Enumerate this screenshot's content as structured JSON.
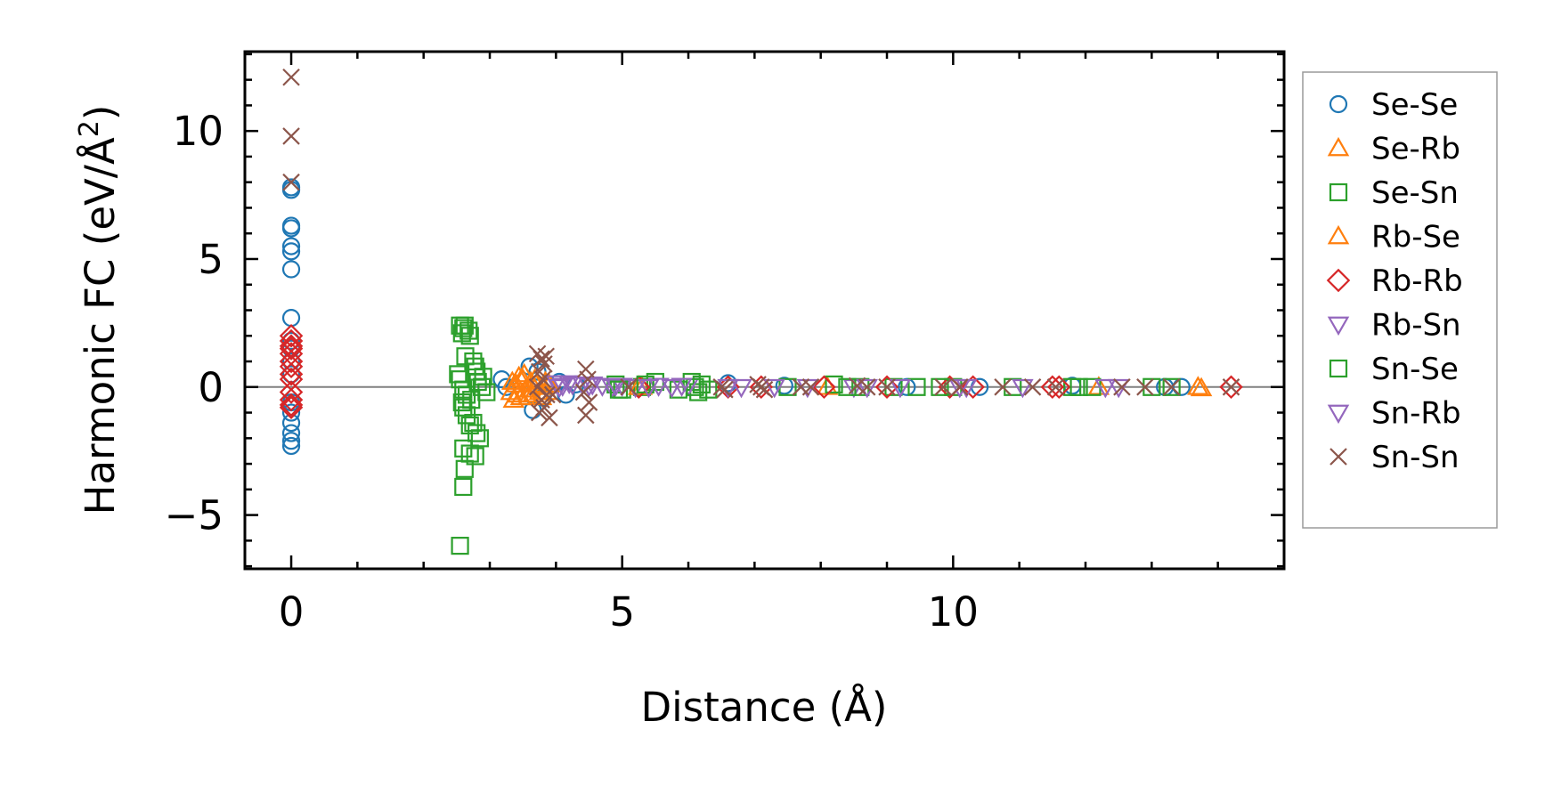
{
  "chart_data": {
    "type": "scatter",
    "xlabel": "Distance (Å)",
    "ylabel_main": "Harmonic FC (eV/Å",
    "ylabel_sup": "2",
    "ylabel_close": ")",
    "xlim": [
      -0.7,
      15.0
    ],
    "ylim": [
      -7.1,
      13.1
    ],
    "xticks": [
      0,
      5,
      10
    ],
    "xtick_labels": [
      "0",
      "5",
      "10"
    ],
    "yticks": [
      -5,
      0,
      5,
      10
    ],
    "ytick_labels": [
      "−5",
      "0",
      "5",
      "10"
    ],
    "grid": false,
    "zero_line": true,
    "legend_position": "right",
    "series": [
      {
        "name": "Se-Se",
        "marker": "circle",
        "color": "#1f77b4",
        "points": [
          [
            0,
            7.8
          ],
          [
            0,
            7.7
          ],
          [
            0,
            6.3
          ],
          [
            0,
            6.2
          ],
          [
            0,
            5.5
          ],
          [
            0,
            5.3
          ],
          [
            0,
            4.6
          ],
          [
            0,
            2.7
          ],
          [
            0,
            1.8
          ],
          [
            0,
            1.5
          ],
          [
            0,
            1.0
          ],
          [
            0,
            0.5
          ],
          [
            0,
            -0.6
          ],
          [
            0,
            -1.0
          ],
          [
            0,
            -1.4
          ],
          [
            0,
            -1.8
          ],
          [
            0,
            -2.1
          ],
          [
            0,
            -2.3
          ],
          [
            3.18,
            0.3
          ],
          [
            3.25,
            0.0
          ],
          [
            3.6,
            0.8
          ],
          [
            3.65,
            -0.9
          ],
          [
            3.72,
            0.6
          ],
          [
            3.8,
            -0.4
          ],
          [
            4.05,
            0.2
          ],
          [
            4.15,
            -0.3
          ],
          [
            4.3,
            0.1
          ],
          [
            6.6,
            0.15
          ],
          [
            7.45,
            0.05
          ],
          [
            9.3,
            0.0
          ],
          [
            10.4,
            0.0
          ],
          [
            11.8,
            0.05
          ],
          [
            13.2,
            0.0
          ],
          [
            13.45,
            0.0
          ]
        ]
      },
      {
        "name": "Se-Rb",
        "marker": "triangle-up",
        "color": "#ff7f0e",
        "points": [
          [
            3.32,
            -0.2
          ],
          [
            3.36,
            -0.5
          ],
          [
            3.4,
            0.1
          ],
          [
            3.44,
            0.4
          ],
          [
            3.47,
            -0.4
          ],
          [
            3.5,
            0.3
          ],
          [
            3.54,
            -0.1
          ],
          [
            3.58,
            -0.4
          ],
          [
            3.62,
            0.2
          ],
          [
            3.65,
            -0.3
          ],
          [
            3.7,
            0.1
          ],
          [
            3.75,
            -0.2
          ],
          [
            3.8,
            0.0
          ],
          [
            3.86,
            -0.2
          ],
          [
            3.9,
            0.1
          ],
          [
            5.3,
            0.0
          ],
          [
            8.1,
            0.0
          ],
          [
            12.2,
            0.0
          ],
          [
            13.75,
            -0.05
          ]
        ]
      },
      {
        "name": "Se-Sn",
        "marker": "square",
        "color": "#2ca02c",
        "points": [
          [
            2.55,
            2.4
          ],
          [
            2.6,
            2.3
          ],
          [
            2.58,
            2.1
          ],
          [
            2.62,
            2.4
          ],
          [
            2.68,
            2.2
          ],
          [
            2.7,
            2.0
          ],
          [
            2.75,
            1.0
          ],
          [
            2.78,
            0.8
          ],
          [
            2.8,
            0.6
          ],
          [
            2.55,
            0.3
          ],
          [
            2.6,
            -0.1
          ],
          [
            2.65,
            -0.3
          ],
          [
            2.72,
            -0.5
          ],
          [
            2.6,
            -0.8
          ],
          [
            2.65,
            -1.1
          ],
          [
            2.75,
            -1.4
          ],
          [
            2.8,
            -1.8
          ],
          [
            2.85,
            -2.0
          ],
          [
            2.7,
            -2.6
          ],
          [
            2.6,
            -2.4
          ],
          [
            2.78,
            -2.7
          ],
          [
            2.62,
            -3.2
          ],
          [
            2.6,
            -3.9
          ],
          [
            2.55,
            -6.2
          ],
          [
            2.9,
            0.4
          ],
          [
            2.95,
            -0.2
          ],
          [
            2.88,
            0.0
          ],
          [
            4.9,
            0.1
          ],
          [
            5.0,
            -0.1
          ],
          [
            5.3,
            0.0
          ],
          [
            5.5,
            0.2
          ],
          [
            5.85,
            -0.1
          ],
          [
            6.05,
            0.2
          ],
          [
            6.15,
            -0.2
          ],
          [
            6.2,
            0.1
          ],
          [
            7.5,
            0.0
          ],
          [
            8.2,
            0.1
          ],
          [
            8.6,
            0.0
          ],
          [
            9.1,
            0.0
          ],
          [
            9.45,
            0.0
          ],
          [
            10.0,
            0.0
          ],
          [
            10.9,
            0.0
          ],
          [
            11.8,
            0.0
          ],
          [
            12.1,
            0.0
          ],
          [
            13.0,
            0.0
          ],
          [
            13.3,
            0.0
          ]
        ]
      },
      {
        "name": "Rb-Se",
        "marker": "triangle-up",
        "color": "#ff7f0e",
        "points": [
          [
            3.34,
            0.2
          ],
          [
            3.42,
            -0.3
          ],
          [
            3.52,
            0.5
          ],
          [
            3.6,
            -0.1
          ],
          [
            3.68,
            0.3
          ],
          [
            3.78,
            -0.4
          ],
          [
            3.84,
            0.2
          ],
          [
            5.25,
            0.0
          ],
          [
            13.7,
            0.0
          ]
        ]
      },
      {
        "name": "Rb-Rb",
        "marker": "diamond",
        "color": "#d62728",
        "points": [
          [
            0,
            2.0
          ],
          [
            0,
            1.8
          ],
          [
            0,
            1.6
          ],
          [
            0,
            1.5
          ],
          [
            0,
            1.3
          ],
          [
            0,
            1.0
          ],
          [
            0,
            0.8
          ],
          [
            0,
            0.5
          ],
          [
            0,
            0.3
          ],
          [
            0,
            -0.2
          ],
          [
            0,
            -0.5
          ],
          [
            0,
            -0.7
          ],
          [
            0,
            -0.8
          ],
          [
            5.25,
            0.0
          ],
          [
            6.6,
            0.0
          ],
          [
            7.1,
            0.0
          ],
          [
            8.05,
            0.0
          ],
          [
            9.0,
            0.0
          ],
          [
            9.95,
            0.0
          ],
          [
            10.3,
            0.0
          ],
          [
            11.5,
            0.0
          ],
          [
            11.6,
            0.0
          ],
          [
            14.2,
            0.0
          ]
        ]
      },
      {
        "name": "Rb-Sn",
        "marker": "triangle-down",
        "color": "#9467bd",
        "points": [
          [
            4.0,
            0.15
          ],
          [
            4.1,
            0.05
          ],
          [
            4.2,
            0.15
          ],
          [
            4.4,
            0.1
          ],
          [
            4.55,
            0.1
          ],
          [
            4.7,
            0.05
          ],
          [
            4.85,
            0.0
          ],
          [
            5.0,
            0.05
          ],
          [
            5.2,
            0.0
          ],
          [
            5.55,
            0.05
          ],
          [
            5.75,
            0.0
          ],
          [
            6.0,
            0.05
          ],
          [
            6.6,
            0.0
          ],
          [
            7.3,
            0.0
          ],
          [
            8.5,
            0.0
          ],
          [
            9.2,
            0.0
          ],
          [
            10.2,
            0.0
          ],
          [
            11.05,
            0.0
          ],
          [
            12.5,
            0.0
          ]
        ]
      },
      {
        "name": "Sn-Se",
        "marker": "square",
        "color": "#2ca02c",
        "points": [
          [
            2.52,
            0.5
          ],
          [
            2.58,
            -0.6
          ],
          [
            2.63,
            1.2
          ],
          [
            2.7,
            -1.5
          ],
          [
            2.82,
            0.2
          ],
          [
            4.95,
            -0.1
          ],
          [
            5.35,
            0.1
          ],
          [
            6.1,
            0.0
          ],
          [
            6.3,
            -0.1
          ],
          [
            8.4,
            0.0
          ],
          [
            9.8,
            0.0
          ],
          [
            11.9,
            0.0
          ]
        ]
      },
      {
        "name": "Sn-Rb",
        "marker": "triangle-down",
        "color": "#9467bd",
        "points": [
          [
            4.05,
            0.0
          ],
          [
            4.25,
            0.1
          ],
          [
            4.5,
            0.05
          ],
          [
            4.9,
            0.05
          ],
          [
            5.4,
            0.0
          ],
          [
            5.9,
            0.05
          ],
          [
            6.8,
            0.0
          ],
          [
            7.8,
            0.0
          ],
          [
            8.7,
            0.0
          ],
          [
            10.1,
            0.0
          ],
          [
            12.3,
            0.0
          ]
        ]
      },
      {
        "name": "Sn-Sn",
        "marker": "x",
        "color": "#8c564b",
        "points": [
          [
            0,
            12.1
          ],
          [
            0,
            9.8
          ],
          [
            0,
            8.0
          ],
          [
            3.72,
            1.3
          ],
          [
            3.78,
            1.1
          ],
          [
            3.85,
            1.2
          ],
          [
            3.82,
            0.9
          ],
          [
            3.75,
            0.6
          ],
          [
            3.8,
            0.3
          ],
          [
            3.72,
            0.0
          ],
          [
            3.86,
            -0.3
          ],
          [
            3.78,
            -0.5
          ],
          [
            3.82,
            -0.8
          ],
          [
            3.9,
            -1.2
          ],
          [
            3.75,
            -1.0
          ],
          [
            3.95,
            -0.3
          ],
          [
            4.45,
            0.7
          ],
          [
            4.48,
            0.3
          ],
          [
            4.42,
            -0.2
          ],
          [
            4.5,
            -0.6
          ],
          [
            4.45,
            -1.1
          ],
          [
            5.1,
            0.0
          ],
          [
            6.5,
            0.0
          ],
          [
            6.55,
            -0.1
          ],
          [
            7.05,
            0.1
          ],
          [
            7.1,
            0.0
          ],
          [
            7.15,
            -0.1
          ],
          [
            7.7,
            0.0
          ],
          [
            7.85,
            0.0
          ],
          [
            8.55,
            0.05
          ],
          [
            8.7,
            0.0
          ],
          [
            9.0,
            0.0
          ],
          [
            9.85,
            0.0
          ],
          [
            10.1,
            0.0
          ],
          [
            10.75,
            0.0
          ],
          [
            11.2,
            0.0
          ],
          [
            11.55,
            0.0
          ],
          [
            12.55,
            0.0
          ],
          [
            12.9,
            0.0
          ],
          [
            13.3,
            0.0
          ],
          [
            14.2,
            0.0
          ]
        ]
      }
    ]
  }
}
